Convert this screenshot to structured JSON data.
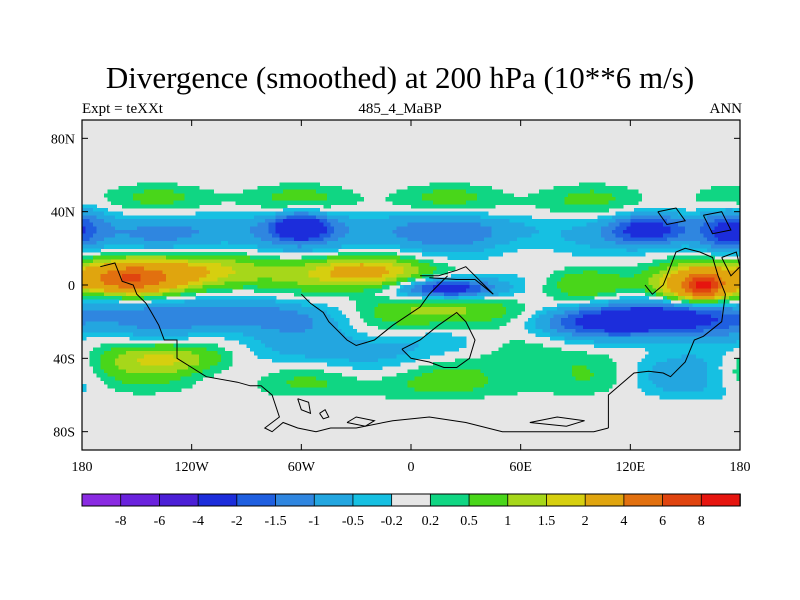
{
  "title": "Divergence (smoothed) at 200 hPa (10**6 m/s)",
  "subtitle_left": "Expt = teXXt",
  "subtitle_center": "485_4_MaBP",
  "subtitle_right": "ANN",
  "chart_data": {
    "type": "heatmap",
    "title": "Divergence (smoothed) at 200 hPa (10**6 m/s)",
    "xlim": [
      -180,
      180
    ],
    "ylim": [
      -90,
      90
    ],
    "x_ticks": [
      {
        "value": -180,
        "label": "180"
      },
      {
        "value": -120,
        "label": "120W"
      },
      {
        "value": -60,
        "label": "60W"
      },
      {
        "value": 0,
        "label": "0"
      },
      {
        "value": 60,
        "label": "60E"
      },
      {
        "value": 120,
        "label": "120E"
      },
      {
        "value": 180,
        "label": "180"
      }
    ],
    "y_ticks": [
      {
        "value": 80,
        "label": "80N"
      },
      {
        "value": 40,
        "label": "40N"
      },
      {
        "value": 0,
        "label": "0"
      },
      {
        "value": -40,
        "label": "40S"
      },
      {
        "value": -80,
        "label": "80S"
      }
    ],
    "missing_color": "#e6e6e6",
    "colorbar": {
      "colors": [
        "#8a2be2",
        "#6a22dd",
        "#4b1fd6",
        "#1c2ddb",
        "#1f5fe0",
        "#2f86e0",
        "#23a6e0",
        "#16c0e2",
        "#e6e6e6",
        "#10d683",
        "#49d61a",
        "#a6d71a",
        "#d6cf0f",
        "#e0a50e",
        "#e2700f",
        "#e0440f",
        "#e6150f"
      ],
      "labels": [
        "-8",
        "-6",
        "-4",
        "-2",
        "-1.5",
        "-1",
        "-0.5",
        "-0.2",
        "0.2",
        "0.5",
        "1",
        "1.5",
        "2",
        "4",
        "6",
        "8"
      ]
    },
    "features": [
      {
        "lon": -120,
        "lat": 45,
        "sx": 60,
        "sy": 8,
        "v": 0.6
      },
      {
        "lon": 40,
        "lat": 45,
        "sx": 80,
        "sy": 8,
        "v": 0.6
      },
      {
        "lon": -100,
        "lat": 30,
        "sx": 80,
        "sy": 9,
        "v": -1.2
      },
      {
        "lon": -60,
        "lat": 32,
        "sx": 10,
        "sy": 5,
        "v": -2.5
      },
      {
        "lon": 30,
        "lat": 30,
        "sx": 40,
        "sy": 8,
        "v": -1.0
      },
      {
        "lon": 130,
        "lat": 30,
        "sx": 15,
        "sy": 6,
        "v": -2.5
      },
      {
        "lon": 175,
        "lat": 30,
        "sx": 12,
        "sy": 8,
        "v": -1.8
      },
      {
        "lon": -130,
        "lat": 7,
        "sx": 40,
        "sy": 7,
        "v": 2.4
      },
      {
        "lon": -155,
        "lat": 3,
        "sx": 15,
        "sy": 5,
        "v": 4.5
      },
      {
        "lon": -25,
        "lat": 7,
        "sx": 22,
        "sy": 6,
        "v": 2.6
      },
      {
        "lon": 20,
        "lat": -2,
        "sx": 18,
        "sy": 4,
        "v": -3.0
      },
      {
        "lon": 95,
        "lat": 0,
        "sx": 18,
        "sy": 6,
        "v": 0.7
      },
      {
        "lon": 155,
        "lat": 0,
        "sx": 16,
        "sy": 7,
        "v": 3.5
      },
      {
        "lon": 160,
        "lat": 0,
        "sx": 6,
        "sy": 4,
        "v": 6.0
      },
      {
        "lon": -100,
        "lat": -17,
        "sx": 70,
        "sy": 7,
        "v": -1.5
      },
      {
        "lon": 10,
        "lat": -15,
        "sx": 40,
        "sy": 7,
        "v": 1.6
      },
      {
        "lon": 100,
        "lat": -20,
        "sx": 30,
        "sy": 6,
        "v": -1.8
      },
      {
        "lon": 140,
        "lat": -18,
        "sx": 25,
        "sy": 7,
        "v": -2.2
      },
      {
        "lon": -135,
        "lat": -40,
        "sx": 25,
        "sy": 6,
        "v": 1.6
      },
      {
        "lon": -170,
        "lat": -50,
        "sx": 20,
        "sy": 8,
        "v": 0.7
      },
      {
        "lon": -30,
        "lat": -35,
        "sx": 50,
        "sy": 7,
        "v": -0.8
      },
      {
        "lon": 60,
        "lat": -40,
        "sx": 40,
        "sy": 8,
        "v": 0.5
      },
      {
        "lon": 0,
        "lat": -55,
        "sx": 70,
        "sy": 7,
        "v": 0.55
      },
      {
        "lon": 160,
        "lat": -50,
        "sx": 25,
        "sy": 12,
        "v": -0.9
      }
    ],
    "coastlines": [
      [
        [
          -170,
          10
        ],
        [
          -162,
          12
        ],
        [
          -158,
          2
        ],
        [
          -152,
          0
        ],
        [
          -150,
          -5
        ],
        [
          -145,
          -10
        ],
        [
          -142,
          -15
        ],
        [
          -138,
          -22
        ],
        [
          -135,
          -30
        ],
        [
          -128,
          -30
        ],
        [
          -128,
          -40
        ],
        [
          -120,
          -45
        ],
        [
          -112,
          -50
        ],
        [
          -95,
          -53
        ],
        [
          -88,
          -55
        ],
        [
          -82,
          -55
        ],
        [
          -76,
          -60
        ],
        [
          -72,
          -72
        ],
        [
          -80,
          -78
        ],
        [
          -76,
          -80
        ],
        [
          -70,
          -75
        ],
        [
          -62,
          -78
        ],
        [
          -52,
          -80
        ],
        [
          -44,
          -78
        ],
        [
          -30,
          -78
        ],
        [
          -10,
          -74
        ],
        [
          10,
          -72
        ],
        [
          30,
          -75
        ],
        [
          50,
          -80
        ],
        [
          70,
          -80
        ],
        [
          85,
          -80
        ],
        [
          100,
          -80
        ],
        [
          108,
          -78
        ]
      ],
      [
        [
          108,
          -78
        ],
        [
          108,
          -60
        ],
        [
          122,
          -48
        ],
        [
          130,
          -47
        ],
        [
          138,
          -48
        ],
        [
          142,
          -50
        ],
        [
          150,
          -42
        ],
        [
          155,
          -30
        ],
        [
          160,
          -28
        ],
        [
          170,
          -20
        ],
        [
          172,
          -5
        ],
        [
          168,
          5
        ],
        [
          165,
          15
        ],
        [
          158,
          18
        ],
        [
          150,
          20
        ],
        [
          145,
          18
        ],
        [
          140,
          5
        ],
        [
          138,
          0
        ],
        [
          132,
          -5
        ],
        [
          128,
          0
        ]
      ],
      [
        [
          -60,
          -5
        ],
        [
          -55,
          -10
        ],
        [
          -48,
          -15
        ],
        [
          -45,
          -20
        ],
        [
          -40,
          -25
        ],
        [
          -35,
          -30
        ],
        [
          -30,
          -33
        ],
        [
          -20,
          -30
        ],
        [
          -10,
          -22
        ],
        [
          5,
          -12
        ],
        [
          10,
          -5
        ],
        [
          15,
          0
        ],
        [
          20,
          5
        ]
      ],
      [
        [
          -5,
          -35
        ],
        [
          0,
          -40
        ],
        [
          10,
          -42
        ],
        [
          18,
          -45
        ],
        [
          25,
          -45
        ],
        [
          32,
          -40
        ],
        [
          35,
          -30
        ],
        [
          30,
          -20
        ],
        [
          25,
          -15
        ],
        [
          15,
          -22
        ],
        [
          5,
          -30
        ],
        [
          -5,
          -35
        ]
      ],
      [
        [
          5,
          5
        ],
        [
          15,
          5
        ],
        [
          25,
          8
        ],
        [
          30,
          10
        ],
        [
          35,
          5
        ],
        [
          40,
          0
        ],
        [
          45,
          -5
        ],
        [
          35,
          3
        ],
        [
          25,
          3
        ],
        [
          10,
          4
        ]
      ],
      [
        [
          -62,
          -62
        ],
        [
          -60,
          -68
        ],
        [
          -55,
          -70
        ],
        [
          -56,
          -64
        ],
        [
          -62,
          -62
        ]
      ],
      [
        [
          -50,
          -70
        ],
        [
          -48,
          -73
        ],
        [
          -45,
          -72
        ],
        [
          -47,
          -68
        ],
        [
          -50,
          -70
        ]
      ],
      [
        [
          -35,
          -75
        ],
        [
          -25,
          -77
        ],
        [
          -20,
          -74
        ],
        [
          -30,
          -72
        ],
        [
          -35,
          -75
        ]
      ],
      [
        [
          65,
          -75
        ],
        [
          85,
          -77
        ],
        [
          95,
          -74
        ],
        [
          80,
          -72
        ],
        [
          65,
          -75
        ]
      ],
      [
        [
          135,
          40
        ],
        [
          145,
          42
        ],
        [
          150,
          35
        ],
        [
          140,
          33
        ],
        [
          135,
          40
        ]
      ],
      [
        [
          160,
          38
        ],
        [
          170,
          40
        ],
        [
          175,
          30
        ],
        [
          165,
          28
        ],
        [
          160,
          38
        ]
      ],
      [
        [
          170,
          15
        ],
        [
          178,
          18
        ],
        [
          180,
          10
        ],
        [
          175,
          5
        ],
        [
          170,
          15
        ]
      ]
    ]
  }
}
